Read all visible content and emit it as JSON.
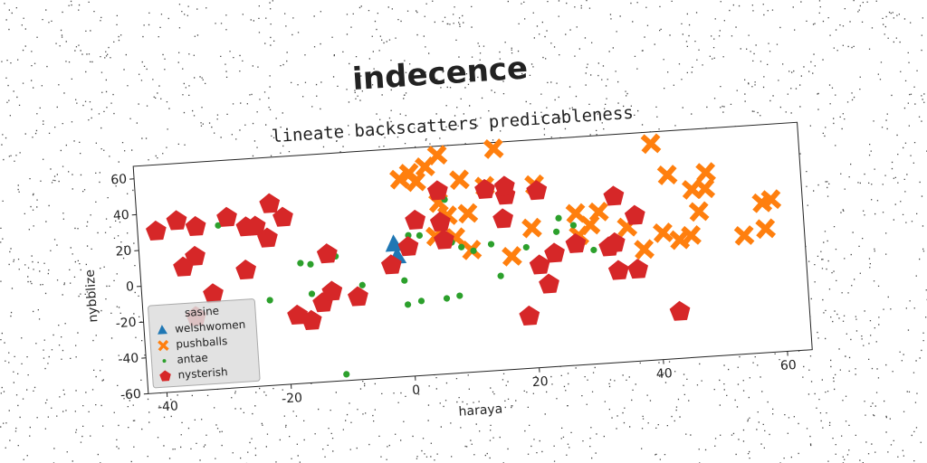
{
  "chart_data": {
    "type": "scatter",
    "suptitle": "indecence",
    "title": "lineate backscatters predicableness",
    "xlabel": "haraya",
    "ylabel": "nybblize",
    "xlim": [
      -43,
      64
    ],
    "ylim": [
      -60,
      67
    ],
    "xticks": [
      -40,
      -20,
      0,
      20,
      40,
      60
    ],
    "yticks": [
      -60,
      -40,
      -20,
      0,
      20,
      40,
      60
    ],
    "legend_title": "sasine",
    "legend_loc": "lower left",
    "series": [
      {
        "name": "welshwomen",
        "color": "#1f77b4",
        "marker": "triangle",
        "x": [
          -2,
          -1.6
        ],
        "values": [
          14,
          7
        ]
      },
      {
        "name": "pushballs",
        "color": "#ff7f0e",
        "marker": "x",
        "x": [
          -0.4,
          1.2,
          2.2,
          3.8,
          5.9,
          15,
          9.2,
          5.6,
          6.9,
          10.2,
          10.4,
          4.8,
          8,
          13.2,
          16.8,
          20.3,
          21.2,
          27.5,
          29.7,
          27.8,
          35.6,
          38.1,
          40.3,
          41.3,
          42.6,
          43.9,
          45.8,
          46.4,
          47.3,
          48.8,
          48.5,
          54.3,
          57.5,
          57.8,
          59,
          31.2
        ],
        "values": [
          50,
          53,
          48,
          56,
          62,
          63.5,
          47.5,
          35.5,
          28,
          28.5,
          8,
          17,
          15.5,
          43,
          3,
          18,
          42,
          24.5,
          17.5,
          12,
          15,
          2,
          60.5,
          10.5,
          42.5,
          6,
          8,
          33.5,
          21,
          42.5,
          33.5,
          6,
          23.5,
          9,
          25,
          24.5
        ]
      },
      {
        "name": "antae",
        "color": "#2ca02c",
        "marker": "circle",
        "x": [
          -30,
          -22.5,
          -17.2,
          -15.6,
          -15.7,
          -11.5,
          -7.5,
          -11,
          -0.7,
          -0.4,
          1.8,
          0.4,
          2.2,
          5.9,
          8,
          6.6,
          7.3,
          8.8,
          10.7,
          13.6,
          14.8,
          19.2,
          24.2,
          24.7,
          27,
          30
        ],
        "values": [
          31,
          -12.5,
          7,
          6,
          -10.5,
          9.5,
          -7.5,
          -56.5,
          -6.5,
          -20,
          -18.5,
          18.5,
          18,
          -18,
          -17,
          37,
          13,
          10,
          7.5,
          10.5,
          -7.5,
          7.5,
          15,
          22.5,
          18,
          3.5
        ]
      },
      {
        "name": "nysterish",
        "color": "#d62728",
        "marker": "pentagon",
        "x": [
          -40,
          -36.6,
          -33.6,
          -34,
          -36,
          -31.5,
          -34.5,
          -28.5,
          -25.5,
          -24,
          -26,
          -22.2,
          -21.5,
          -19.5,
          -18.2,
          -16,
          -14,
          -12.8,
          -12.4,
          -8.3,
          -2.6,
          0.3,
          1.7,
          5.7,
          6.1,
          5.6,
          13.2,
          16.4,
          16.4,
          21.5,
          15.8,
          21.2,
          22.5,
          23.7,
          19,
          27.2,
          32.5,
          33.5,
          33.8,
          33.8,
          36.9,
          37,
          43.2
        ],
        "values": [
          30,
          35,
          31,
          14.5,
          9,
          -7,
          -19,
          35,
          29,
          29,
          5,
          22,
          41,
          33,
          -22,
          -25.5,
          -16,
          11,
          -10,
          -14,
          2.5,
          12,
          26.5,
          24.5,
          14.5,
          42,
          41,
          37,
          42,
          38.5,
          24,
          -3,
          -14,
          3,
          -31,
          7.5,
          4.5,
          6.5,
          32.5,
          -9,
          -9,
          21,
          -34
        ]
      }
    ]
  }
}
